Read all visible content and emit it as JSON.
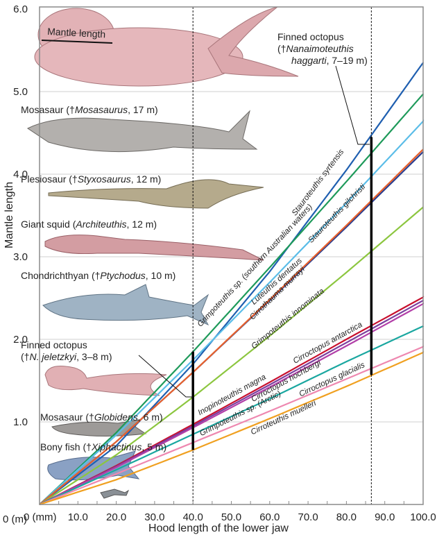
{
  "chart_data": {
    "type": "line",
    "xlabel": "Hood length of the lower jaw",
    "ylabel": "Mantle length",
    "x_unit_label": "0 (mm)",
    "y_unit_label": "0 (m)",
    "xlim": [
      0,
      100
    ],
    "ylim": [
      0,
      6
    ],
    "xticks": [
      "10.0",
      "20.0",
      "30.0",
      "40.0",
      "50.0",
      "60.0",
      "70.0",
      "80.0",
      "90.0",
      "100.0"
    ],
    "yticks": [
      "1.0",
      "2.0",
      "3.0",
      "4.0",
      "5.0",
      "6.0"
    ],
    "grid": "horizontal",
    "x": [
      0,
      20,
      40,
      60,
      80,
      100
    ],
    "series": [
      {
        "name": "Stauroteuthis syrtensis",
        "color": "#1f5fb0",
        "values": [
          0,
          0.71,
          1.7,
          2.82,
          4.05,
          5.35
        ]
      },
      {
        "name": "Grimpoteuthis sp. (southern Australian waters)",
        "color": "#1e9a5a",
        "values": [
          0,
          0.87,
          1.85,
          2.87,
          3.91,
          4.97
        ]
      },
      {
        "name": "Stauroteuthis gilchristi",
        "color": "#5bbde8",
        "values": [
          0,
          0.84,
          1.75,
          2.69,
          3.65,
          4.64
        ]
      },
      {
        "name": "Luteuthis dentatus",
        "color": "#2a3d8f",
        "values": [
          0,
          0.76,
          1.6,
          2.47,
          3.36,
          4.27
        ]
      },
      {
        "name": "Cirrothauma murrayi",
        "color": "#e8612c",
        "values": [
          0,
          0.76,
          1.6,
          2.48,
          3.38,
          4.3
        ]
      },
      {
        "name": "Grimpoteuthis innominata",
        "color": "#8cc63f",
        "values": [
          0,
          0.6,
          1.3,
          2.04,
          2.81,
          3.6
        ]
      },
      {
        "name": "Cirroctopus antarctica",
        "color": "#c8102e",
        "values": [
          0,
          0.47,
          0.97,
          1.48,
          2.0,
          2.51
        ]
      },
      {
        "name": "Inopinoteuthis magna",
        "color": "#7b3f9e",
        "values": [
          0,
          0.46,
          0.95,
          1.45,
          1.96,
          2.47
        ]
      },
      {
        "name": "Cirroctopus hochbergi",
        "color": "#b23fa8",
        "values": [
          0,
          0.45,
          0.93,
          1.42,
          1.92,
          2.43
        ]
      },
      {
        "name": "Grimpoteuthis sp. (Arctic)",
        "color": "#1aa7a0",
        "values": [
          0,
          0.42,
          0.85,
          1.28,
          1.73,
          2.16
        ]
      },
      {
        "name": "Cirroctopus glacialis",
        "color": "#ee88b0",
        "values": [
          0,
          0.37,
          0.75,
          1.13,
          1.52,
          1.91
        ]
      },
      {
        "name": "Cirroteuthis muelleri",
        "color": "#f0a020",
        "values": [
          0,
          0.3,
          0.66,
          1.04,
          1.43,
          1.84
        ]
      }
    ],
    "reference_lines": [
      {
        "x": 40,
        "range": [
          0.66,
          1.85
        ]
      },
      {
        "x": 86.5,
        "range": [
          1.57,
          4.45
        ]
      }
    ],
    "annotations": {
      "mantle_length": "Mantle length",
      "nanaimo": {
        "l1": "Finned octopus",
        "l2_pre": "(†",
        "l2_it": "Nanaimoteuthis",
        "l3_it": "haggarti",
        "l3_post": ", 7–19 m)"
      },
      "mosasaurus": {
        "pre": "Mosasaur (†",
        "it": "Mosasaurus",
        "post": ", 17 m)"
      },
      "styxosaurus": {
        "pre": "Plesiosaur (†",
        "it": "Styxosaurus",
        "post": ", 12 m)"
      },
      "architeuthis": {
        "pre": "Giant squid (",
        "it": "Architeuthis",
        "post": ", 12 m)"
      },
      "ptychodus": {
        "pre": "Chondrichthyan (†",
        "it": "Ptychodus",
        "post": ", 10 m)"
      },
      "jeletzkyi": {
        "l1": "Finned octopus",
        "l2_pre": "(†",
        "l2_it": "N. jeletzkyi",
        "l2_post": ", 3–8 m)"
      },
      "globidens": {
        "pre": "Mosasaur (†",
        "it": "Globidens",
        "post": ", 6 m)"
      },
      "xiphactinus": {
        "pre": "Bony fish (†",
        "it": "Xiphactinus",
        "post": ", 5 m)"
      }
    }
  }
}
